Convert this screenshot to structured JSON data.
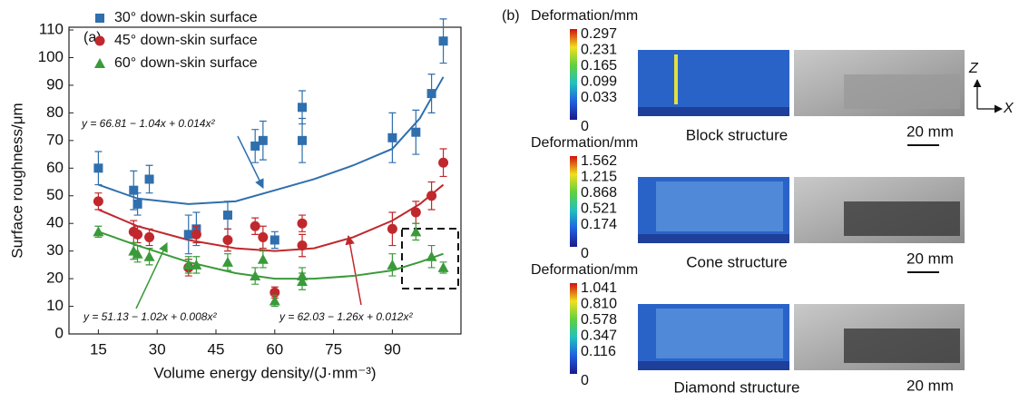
{
  "chart_data": {
    "type": "scatter",
    "panel_label": "(a)",
    "xlabel": "Volume energy density/(J·mm⁻³)",
    "ylabel": "Surface roughness/μm",
    "xlim": [
      7.5,
      107.5
    ],
    "ylim": [
      0,
      111
    ],
    "xticks": [
      15,
      30,
      45,
      60,
      75,
      90
    ],
    "yticks": [
      0,
      10,
      20,
      30,
      40,
      50,
      60,
      70,
      80,
      90,
      100,
      110
    ],
    "legend": "upper-left",
    "series": [
      {
        "name": "30° down-skin surface",
        "color": "#2f6fad",
        "marker": "square",
        "x": [
          15,
          24,
          25,
          28,
          38,
          40,
          48,
          55,
          57,
          60,
          67,
          67,
          90,
          96,
          100,
          103
        ],
        "values": [
          60,
          52,
          47,
          56,
          36,
          38,
          43,
          68,
          70,
          34,
          82,
          70,
          71,
          73,
          87,
          106
        ],
        "errors": [
          6,
          7,
          4,
          5,
          7,
          6,
          5,
          6,
          7,
          3,
          6,
          8,
          9,
          8,
          7,
          8
        ]
      },
      {
        "name": "45° down-skin surface",
        "color": "#c0282d",
        "marker": "circle",
        "x": [
          15,
          24,
          25,
          28,
          38,
          40,
          48,
          55,
          57,
          60,
          67,
          67,
          90,
          96,
          100,
          103
        ],
        "values": [
          48,
          37,
          36,
          35,
          24,
          36,
          34,
          39,
          35,
          15,
          40,
          32,
          38,
          44,
          50,
          62
        ],
        "errors": [
          3,
          4,
          3,
          3,
          3,
          3,
          4,
          3,
          4,
          2,
          3,
          4,
          6,
          4,
          5,
          5
        ]
      },
      {
        "name": "60° down-skin surface",
        "color": "#3a9a3a",
        "marker": "triangle",
        "x": [
          15,
          24,
          25,
          28,
          38,
          40,
          48,
          55,
          57,
          60,
          67,
          67,
          90,
          96,
          100,
          103
        ],
        "values": [
          37,
          30,
          29,
          28,
          25,
          25,
          26,
          21,
          27,
          12,
          21,
          19,
          25,
          37,
          28,
          24
        ],
        "errors": [
          2,
          3,
          3,
          3,
          3,
          3,
          3,
          3,
          3,
          2,
          3,
          3,
          4,
          3,
          4,
          2
        ]
      }
    ],
    "fits": [
      {
        "color": "#2f6fad",
        "equation": "y = 66.81 − 1.04x + 0.014x²",
        "x": [
          15,
          25,
          38,
          50,
          60,
          70,
          80,
          90,
          97,
          103
        ],
        "values": [
          54,
          49,
          47,
          48,
          52,
          56,
          61,
          67,
          78,
          93
        ]
      },
      {
        "color": "#c0282d",
        "equation": "y = 62.03 − 1.26x + 0.012x²",
        "x": [
          15,
          25,
          38,
          50,
          60,
          70,
          80,
          90,
          97,
          103
        ],
        "values": [
          45,
          39,
          34,
          31,
          30,
          31,
          35,
          41,
          47,
          54
        ]
      },
      {
        "color": "#3a9a3a",
        "equation": "y = 51.13 − 1.02x + 0.008x²",
        "x": [
          15,
          25,
          38,
          50,
          60,
          70,
          80,
          90,
          97,
          103
        ],
        "values": [
          37,
          32,
          26,
          22,
          20,
          20,
          21,
          23,
          26,
          29
        ]
      }
    ]
  },
  "panel_b": {
    "label": "(b)",
    "axis_z": "Z",
    "axis_x": "X",
    "panels": [
      {
        "colorbar_title": "Deformation/mm",
        "colorbar_labels": [
          "0.297",
          "0.231",
          "0.165",
          "0.099",
          "0.033",
          "0"
        ],
        "structure": "Block structure",
        "scale": "20 mm"
      },
      {
        "colorbar_title": "Deformation/mm",
        "colorbar_labels": [
          "1.562",
          "1.215",
          "0.868",
          "0.521",
          "0.174",
          "0"
        ],
        "structure": "Cone structure",
        "scale": "20 mm"
      },
      {
        "colorbar_title": "Deformation/mm",
        "colorbar_labels": [
          "1.041",
          "0.810",
          "0.578",
          "0.347",
          "0.116",
          "0"
        ],
        "structure": "Diamond structure",
        "scale": "20 mm"
      }
    ]
  }
}
